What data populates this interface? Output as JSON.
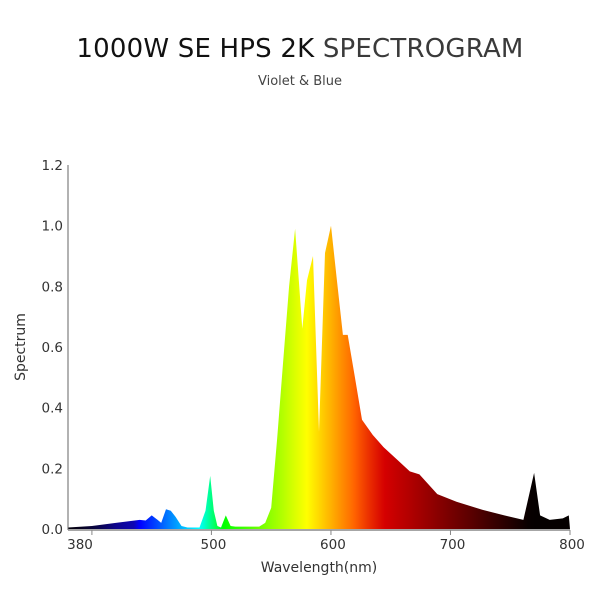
{
  "header": {
    "title_part1": "1000W SE HPS 2K",
    "title_part2": "SPECTROGRAM",
    "subtitle": "Violet & Blue"
  },
  "chart_data": {
    "type": "area",
    "title": "1000W SE HPS 2K SPECTROGRAM",
    "subtitle": "Violet & Blue",
    "xlabel": "Wavelength(nm)",
    "ylabel": "Spectrum",
    "xlim": [
      380,
      800
    ],
    "ylim": [
      0,
      1.2
    ],
    "x_ticks": [
      380,
      500,
      600,
      700,
      800
    ],
    "y_ticks": [
      "0.0",
      "0.2",
      "0.4",
      "0.6",
      "0.8",
      "1.0",
      "1.2"
    ],
    "grid": false,
    "fill": "wavelength-colored spectrum gradient",
    "x": [
      380,
      400,
      420,
      430,
      440,
      445,
      450,
      455,
      458,
      462,
      466,
      470,
      475,
      480,
      490,
      495,
      499,
      502,
      505,
      508,
      512,
      516,
      520,
      540,
      545,
      550,
      555,
      560,
      565,
      570,
      576,
      580,
      585,
      590,
      595,
      600,
      605,
      610,
      614,
      620,
      626,
      635,
      644,
      655,
      666,
      674,
      689,
      705,
      727,
      745,
      761,
      770,
      775,
      783,
      794,
      799,
      800
    ],
    "values": [
      0.005,
      0.01,
      0.02,
      0.025,
      0.03,
      0.028,
      0.045,
      0.03,
      0.02,
      0.065,
      0.06,
      0.04,
      0.01,
      0.005,
      0.005,
      0.06,
      0.175,
      0.06,
      0.01,
      0.005,
      0.045,
      0.01,
      0.008,
      0.008,
      0.02,
      0.07,
      0.3,
      0.55,
      0.8,
      0.99,
      0.66,
      0.82,
      0.9,
      0.32,
      0.91,
      1.0,
      0.82,
      0.64,
      0.64,
      0.5,
      0.36,
      0.31,
      0.27,
      0.23,
      0.19,
      0.18,
      0.115,
      0.09,
      0.063,
      0.045,
      0.03,
      0.185,
      0.045,
      0.03,
      0.035,
      0.045,
      0.0
    ]
  }
}
